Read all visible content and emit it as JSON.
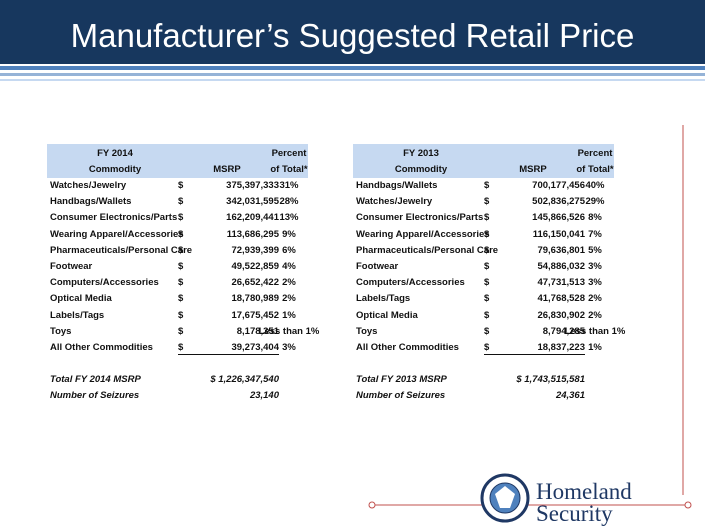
{
  "header": {
    "title": "Manufacturer’s Suggested Retail Price"
  },
  "tables": [
    {
      "headers": {
        "fy": "FY 2014",
        "percent": "Percent",
        "commodity": "Commodity",
        "msrp": "MSRP",
        "of_total": "of Total*"
      },
      "rows": [
        [
          "Watches/Jewelry",
          "$",
          "375,397,333",
          "31%"
        ],
        [
          "Handbags/Wallets",
          "$",
          "342,031,595",
          "28%"
        ],
        [
          "Consumer Electronics/Parts",
          "$",
          "162,209,441",
          "13%"
        ],
        [
          "Wearing Apparel/Accessories",
          "$",
          "113,686,295",
          "9%"
        ],
        [
          "Pharmaceuticals/Personal Care",
          "$",
          "72,939,399",
          "6%"
        ],
        [
          "Footwear",
          "$",
          "49,522,859",
          "4%"
        ],
        [
          "Computers/Accessories",
          "$",
          "26,652,422",
          "2%"
        ],
        [
          "Optical Media",
          "$",
          "18,780,989",
          "2%"
        ],
        [
          "Labels/Tags",
          "$",
          "17,675,452",
          "1%"
        ],
        [
          "Toys",
          "$",
          "8,178,351",
          "Less than 1%"
        ],
        [
          "All Other Commodities",
          "$",
          "39,273,404",
          "3%"
        ]
      ],
      "totals": [
        [
          "Total FY 2014 MSRP",
          "$ 1,226,347,540"
        ],
        [
          "Number of Seizures",
          "23,140"
        ]
      ]
    },
    {
      "headers": {
        "fy": "FY 2013",
        "percent": "Percent",
        "commodity": "Commodity",
        "msrp": "MSRP",
        "of_total": "of Total*"
      },
      "rows": [
        [
          "Handbags/Wallets",
          "$",
          "700,177,456",
          "40%"
        ],
        [
          "Watches/Jewelry",
          "$",
          "502,836,275",
          "29%"
        ],
        [
          "Consumer Electronics/Parts",
          "$",
          "145,866,526",
          "8%"
        ],
        [
          "Wearing Apparel/Accessories",
          "$",
          "116,150,041",
          "7%"
        ],
        [
          "Pharmaceuticals/Personal Care",
          "$",
          "79,636,801",
          "5%"
        ],
        [
          "Footwear",
          "$",
          "54,886,032",
          "3%"
        ],
        [
          "Computers/Accessories",
          "$",
          "47,731,513",
          "3%"
        ],
        [
          "Labels/Tags",
          "$",
          "41,768,528",
          "2%"
        ],
        [
          "Optical Media",
          "$",
          "26,830,902",
          "2%"
        ],
        [
          "Toys",
          "$",
          "8,794,285",
          "Less than 1%"
        ],
        [
          "All Other Commodities",
          "$",
          "18,837,223",
          "1%"
        ]
      ],
      "totals": [
        [
          "Total FY 2013 MSRP",
          "$ 1,743,515,581"
        ],
        [
          "Number of Seizures",
          "24,361"
        ]
      ]
    }
  ],
  "logo": {
    "line1": "Homeland",
    "line2": "Security"
  }
}
